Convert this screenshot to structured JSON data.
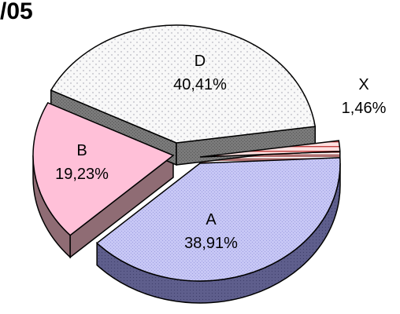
{
  "chart_data": {
    "type": "pie",
    "title": "/05",
    "slices": [
      {
        "label": "D",
        "percent_text": "40,41%",
        "value": 40.41,
        "color": "#f7f7f7",
        "side_color": "#7a7a7a",
        "pattern": "dots"
      },
      {
        "label": "X",
        "percent_text": "1,46%",
        "value": 1.46,
        "color": "#ffd7d7",
        "side_color": "#a06060",
        "pattern": "hstripes"
      },
      {
        "label": "A",
        "percent_text": "38,91%",
        "value": 38.91,
        "color": "#c9c9f5",
        "side_color": "#5e5e8c",
        "pattern": "fine"
      },
      {
        "label": "B",
        "percent_text": "19,23%",
        "value": 19.23,
        "color": "#ffc0d8",
        "side_color": "#8f6c74",
        "pattern": "none"
      }
    ]
  }
}
